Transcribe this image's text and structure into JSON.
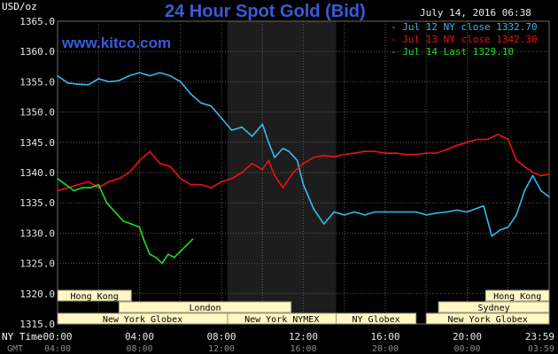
{
  "chart_data": {
    "type": "line",
    "title": "24 Hour Spot Gold (Bid)",
    "website": "www.kitco.com",
    "date": "July 14, 2016 06:38",
    "ylabel": "USD/oz",
    "ylim": [
      1315,
      1365
    ],
    "yticks": [
      "1365.0",
      "1360.0",
      "1355.0",
      "1350.0",
      "1345.0",
      "1340.0",
      "1335.0",
      "1330.0",
      "1325.0",
      "1320.0",
      "1315.0"
    ],
    "xlim": [
      0,
      24
    ],
    "xticks_ny": [
      "00:00",
      "04:00",
      "08:00",
      "12:00",
      "16:00",
      "20:00",
      "23:59"
    ],
    "xticks_gmt": [
      "04:00",
      "08:00",
      "12:00",
      "16:00",
      "20:00",
      "00:00",
      "03:59"
    ],
    "row_label_ny": "NY Time",
    "row_label_gmt": "GMT",
    "grid": true,
    "legend_position": "top-right",
    "shaded_session_hours": [
      8.3,
      13.6
    ],
    "colors": {
      "title": "#3a5bd9",
      "jul12": "#33bbee",
      "jul13": "#ee1111",
      "jul14": "#22dd22",
      "grid": "#5a5a5a",
      "session_shade": "#1d1d1d",
      "market_box": "#fff7c4"
    },
    "series": [
      {
        "name": "Jul 12 NY close 1332.70",
        "color": "#33bbee",
        "x": [
          0,
          0.5,
          1,
          1.5,
          2,
          2.5,
          3,
          3.5,
          4,
          4.5,
          5,
          5.5,
          6,
          6.5,
          7,
          7.5,
          8,
          8.5,
          9,
          9.5,
          10,
          10.3,
          10.6,
          11,
          11.3,
          11.7,
          12,
          12.5,
          13,
          13.5,
          14,
          14.5,
          15,
          15.5,
          16,
          16.5,
          17,
          17.5,
          18,
          18.5,
          19,
          19.5,
          20,
          20.4,
          20.8,
          21.2,
          21.6,
          22,
          22.4,
          22.8,
          23.2,
          23.6,
          24
        ],
        "values": [
          1356,
          1354.8,
          1354.6,
          1354.5,
          1355.5,
          1355,
          1355.2,
          1356,
          1356.5,
          1356,
          1356.5,
          1356,
          1355,
          1353,
          1351.5,
          1351,
          1349,
          1347,
          1347.5,
          1346,
          1348,
          1345,
          1342.5,
          1344,
          1343.5,
          1342,
          1338,
          1334,
          1331.5,
          1333.5,
          1333,
          1333.5,
          1333,
          1333.5,
          1333.5,
          1333.5,
          1333.5,
          1333.5,
          1333,
          1333.3,
          1333.5,
          1333.8,
          1333.5,
          1334,
          1334.5,
          1329.5,
          1330.5,
          1331,
          1333,
          1337,
          1339.5,
          1337,
          1336
        ]
      },
      {
        "name": "Jul 13 NY close 1342.30",
        "color": "#ee1111",
        "x": [
          0,
          0.5,
          1,
          1.5,
          2,
          2.5,
          3,
          3.5,
          4,
          4.5,
          5,
          5.5,
          6,
          6.5,
          7,
          7.5,
          8,
          8.5,
          9,
          9.5,
          10,
          10.3,
          10.6,
          11,
          11.5,
          12,
          12.5,
          13,
          13.5,
          14,
          14.5,
          15,
          15.5,
          16,
          16.5,
          17,
          17.5,
          18,
          18.5,
          19,
          19.5,
          20,
          20.5,
          21,
          21.5,
          22,
          22.4,
          22.8,
          23.2,
          23.6,
          24
        ],
        "values": [
          1337,
          1337.5,
          1338,
          1338.5,
          1337.5,
          1338.5,
          1339,
          1340,
          1342,
          1343.5,
          1341.5,
          1341,
          1339,
          1338,
          1338,
          1337.5,
          1338.5,
          1339,
          1340,
          1341.5,
          1340.5,
          1342,
          1339.5,
          1337.5,
          1340,
          1341.5,
          1342.5,
          1342.8,
          1342.6,
          1343,
          1343.2,
          1343.5,
          1343.5,
          1343.2,
          1343.2,
          1343,
          1343,
          1343.2,
          1343.2,
          1343.8,
          1344.5,
          1345,
          1345.5,
          1345.5,
          1346.3,
          1345.5,
          1342,
          1341,
          1340,
          1339.5,
          1339.7
        ]
      },
      {
        "name": "Jul 14 Last 1329.10",
        "color": "#22dd22",
        "x": [
          0,
          0.4,
          0.8,
          1.2,
          1.6,
          2,
          2.4,
          2.8,
          3.2,
          3.6,
          4,
          4.2,
          4.5,
          4.8,
          5.1,
          5.4,
          5.7,
          6,
          6.3,
          6.6
        ],
        "values": [
          1339,
          1338,
          1337,
          1337.5,
          1337.5,
          1338,
          1335,
          1333.5,
          1332,
          1331.5,
          1331,
          1329,
          1326.5,
          1326,
          1325,
          1326.5,
          1326,
          1327,
          1328,
          1329
        ]
      }
    ],
    "markets": [
      {
        "label": "Hong Kong",
        "row": 1,
        "start": 0,
        "end": 3.6
      },
      {
        "label": "Hong Kong",
        "row": 1,
        "start": 20.9,
        "end": 24
      },
      {
        "label": "London",
        "row": 2,
        "start": 3,
        "end": 11.4
      },
      {
        "label": "Sydney",
        "row": 2,
        "start": 18.6,
        "end": 24
      },
      {
        "label": "New York Globex",
        "row": 3,
        "start": 0,
        "end": 8.3
      },
      {
        "label": "New York NYMEX",
        "row": 3,
        "start": 8.3,
        "end": 13.6
      },
      {
        "label": "NY Globex",
        "row": 3,
        "start": 13.6,
        "end": 17.5
      },
      {
        "label": "New York Globex",
        "row": 3,
        "start": 18,
        "end": 24
      }
    ]
  }
}
